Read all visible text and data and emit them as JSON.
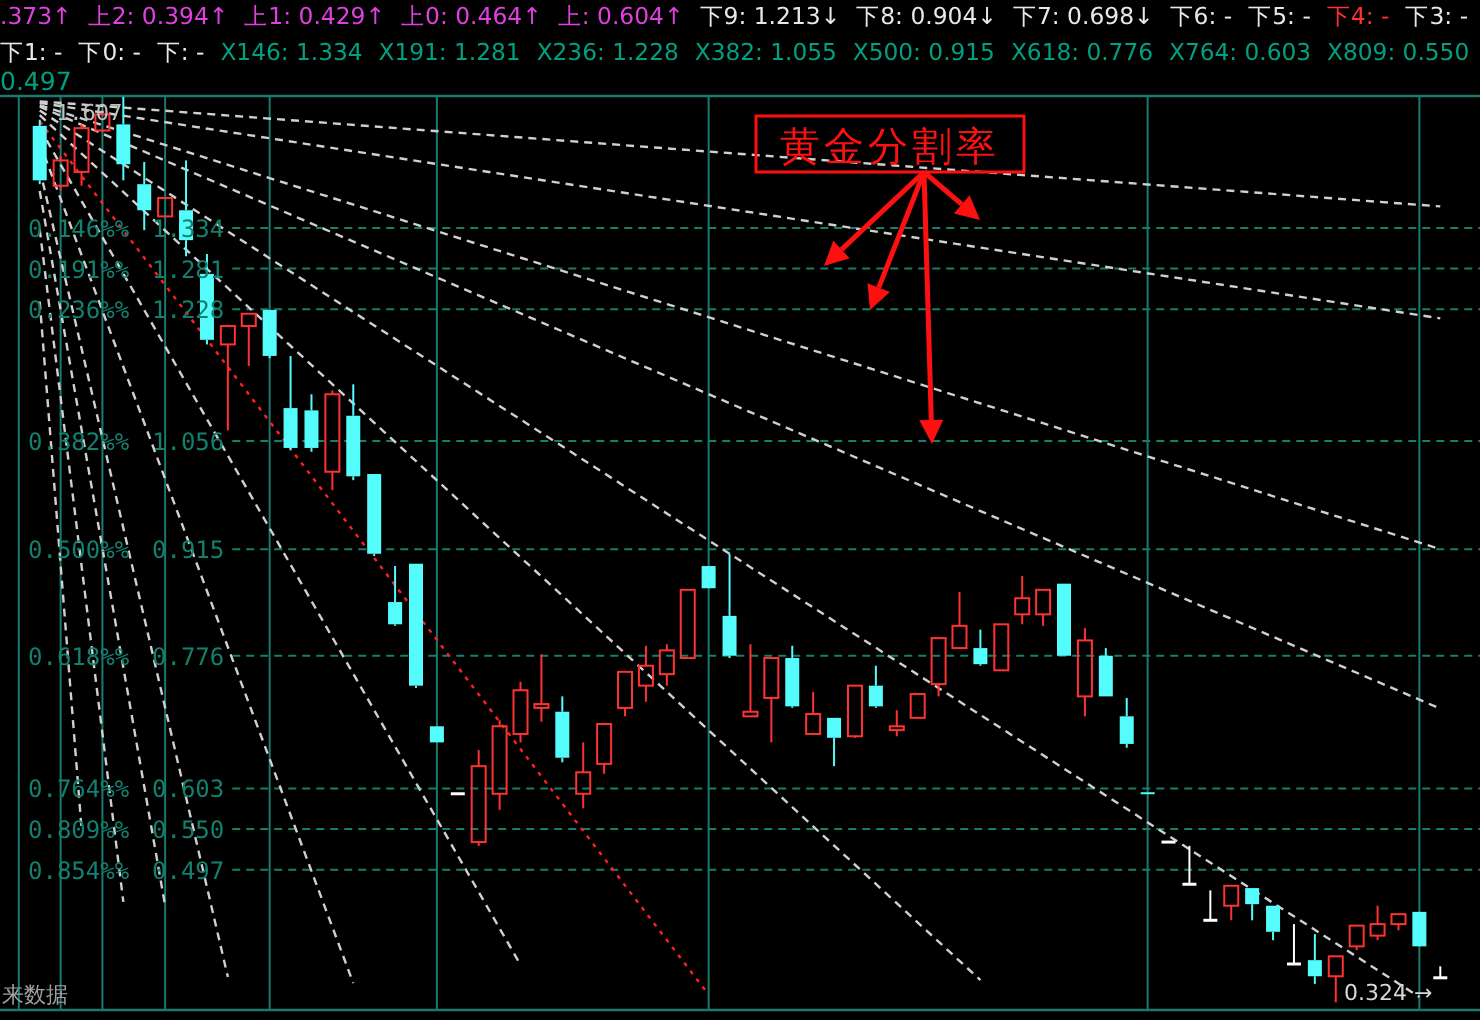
{
  "chart_data": {
    "type": "candlestick",
    "categories": [
      null,
      null,
      null,
      null,
      null,
      null,
      null,
      null,
      null,
      null,
      null,
      null,
      null,
      null,
      null,
      null,
      null,
      null,
      null,
      null,
      null,
      null,
      null,
      null,
      null,
      null,
      null,
      null,
      null,
      null,
      null,
      null,
      null,
      null,
      null,
      null,
      null,
      null,
      null,
      null,
      null,
      null,
      null,
      null,
      null,
      null,
      null,
      null,
      null,
      null,
      null,
      null,
      null,
      null,
      null,
      null,
      null,
      null,
      null,
      null,
      null,
      null,
      null,
      null,
      null,
      null,
      null,
      null
    ],
    "ohlc": [
      [
        1.467,
        1.475,
        1.391,
        1.396
      ],
      [
        1.389,
        1.428,
        1.383,
        1.422
      ],
      [
        1.407,
        1.469,
        1.389,
        1.464
      ],
      [
        1.461,
        1.488,
        1.459,
        1.482
      ],
      [
        1.469,
        1.505,
        1.396,
        1.417
      ],
      [
        1.391,
        1.42,
        1.331,
        1.357
      ],
      [
        1.349,
        1.373,
        1.349,
        1.373
      ],
      [
        1.357,
        1.422,
        1.297,
        1.318
      ],
      [
        1.274,
        1.3,
        1.182,
        1.188
      ],
      [
        1.182,
        1.206,
        1.07,
        1.206
      ],
      [
        1.206,
        1.222,
        1.154,
        1.222
      ],
      [
        1.227,
        1.227,
        1.164,
        1.167
      ],
      [
        1.099,
        1.167,
        1.044,
        1.047
      ],
      [
        1.096,
        1.117,
        1.042,
        1.047
      ],
      [
        1.016,
        1.122,
        0.992,
        1.117
      ],
      [
        1.089,
        1.13,
        1.005,
        1.01
      ],
      [
        1.013,
        1.013,
        0.906,
        0.909
      ],
      [
        0.846,
        0.893,
        0.815,
        0.817
      ],
      [
        0.896,
        0.896,
        0.734,
        0.737
      ],
      [
        0.684,
        0.684,
        0.663,
        0.663
      ],
      [
        0.596,
        0.596,
        0.596,
        0.596
      ],
      [
        0.533,
        0.653,
        0.528,
        0.632
      ],
      [
        0.596,
        0.692,
        0.575,
        0.684
      ],
      [
        0.674,
        0.742,
        0.663,
        0.731
      ],
      [
        0.708,
        0.778,
        0.69,
        0.713
      ],
      [
        0.703,
        0.723,
        0.637,
        0.643
      ],
      [
        0.596,
        0.663,
        0.577,
        0.624
      ],
      [
        0.635,
        0.687,
        0.622,
        0.687
      ],
      [
        0.708,
        0.755,
        0.697,
        0.755
      ],
      [
        0.737,
        0.789,
        0.716,
        0.763
      ],
      [
        0.752,
        0.791,
        0.737,
        0.783
      ],
      [
        0.773,
        0.862,
        0.773,
        0.862
      ],
      [
        0.893,
        0.893,
        0.864,
        0.864
      ],
      [
        0.828,
        0.909,
        0.773,
        0.776
      ],
      [
        0.697,
        0.791,
        0.697,
        0.703
      ],
      [
        0.721,
        0.773,
        0.663,
        0.773
      ],
      [
        0.773,
        0.789,
        0.708,
        0.71
      ],
      [
        0.674,
        0.729,
        0.674,
        0.7
      ],
      [
        0.695,
        0.695,
        0.632,
        0.669
      ],
      [
        0.671,
        0.737,
        0.669,
        0.737
      ],
      [
        0.737,
        0.763,
        0.708,
        0.71
      ],
      [
        0.679,
        0.705,
        0.671,
        0.684
      ],
      [
        0.695,
        0.726,
        0.695,
        0.726
      ],
      [
        0.739,
        0.799,
        0.723,
        0.799
      ],
      [
        0.786,
        0.859,
        0.786,
        0.815
      ],
      [
        0.786,
        0.81,
        0.763,
        0.765
      ],
      [
        0.757,
        0.817,
        0.757,
        0.817
      ],
      [
        0.83,
        0.88,
        0.817,
        0.851
      ],
      [
        0.83,
        0.862,
        0.815,
        0.862
      ],
      [
        0.87,
        0.87,
        0.776,
        0.776
      ],
      [
        0.723,
        0.812,
        0.697,
        0.796
      ],
      [
        0.776,
        0.786,
        0.723,
        0.723
      ],
      [
        0.697,
        0.721,
        0.656,
        0.661
      ],
      [
        0.598,
        0.598,
        0.596,
        0.596
      ],
      [
        0.533,
        0.533,
        0.533,
        0.533
      ],
      [
        0.478,
        0.528,
        0.478,
        0.478
      ],
      [
        0.431,
        0.47,
        0.431,
        0.431
      ],
      [
        0.45,
        0.476,
        0.431,
        0.476
      ],
      [
        0.473,
        0.473,
        0.431,
        0.452
      ],
      [
        0.45,
        0.45,
        0.405,
        0.416
      ],
      [
        0.374,
        0.426,
        0.374,
        0.374
      ],
      [
        0.379,
        0.413,
        0.348,
        0.358
      ],
      [
        0.358,
        0.384,
        0.324,
        0.384
      ],
      [
        0.397,
        0.424,
        0.392,
        0.424
      ],
      [
        0.411,
        0.45,
        0.405,
        0.426
      ],
      [
        0.426,
        0.439,
        0.418,
        0.439
      ],
      [
        0.442,
        0.442,
        0.397,
        0.397
      ],
      [
        0.356,
        0.371,
        0.356,
        0.356
      ]
    ],
    "series": [
      {
        "type": "line",
        "color": "#d0d0d0",
        "line_style": "dashed",
        "values": [
          1.499,
          null,
          null,
          null,
          null,
          null,
          null,
          null,
          null,
          null,
          null,
          null,
          null,
          null,
          null,
          null,
          null,
          null,
          null,
          null,
          null,
          null,
          null,
          null,
          null,
          null,
          null,
          null,
          null,
          null,
          null,
          null,
          null,
          null,
          null,
          null,
          null,
          null,
          null,
          null,
          null,
          null,
          null,
          null,
          null,
          null,
          null,
          null,
          null,
          null,
          null,
          null,
          null,
          null,
          null,
          null,
          null,
          null,
          null,
          null,
          null,
          null,
          null,
          null,
          null,
          null,
          null,
          1.362
        ]
      },
      {
        "type": "line",
        "color": "#d0d0d0",
        "line_style": "dashed",
        "values": [
          1.497,
          null,
          null,
          null,
          null,
          null,
          null,
          null,
          null,
          null,
          null,
          null,
          null,
          null,
          null,
          null,
          null,
          null,
          null,
          null,
          null,
          null,
          null,
          null,
          null,
          null,
          null,
          null,
          null,
          null,
          null,
          null,
          null,
          null,
          null,
          null,
          null,
          null,
          null,
          null,
          null,
          null,
          null,
          null,
          null,
          null,
          null,
          null,
          null,
          null,
          null,
          null,
          null,
          null,
          null,
          null,
          null,
          null,
          null,
          null,
          null,
          null,
          null,
          null,
          null,
          null,
          null,
          1.216
        ]
      },
      {
        "type": "line",
        "color": "#d0d0d0",
        "line_style": "dashed",
        "values": [
          1.494,
          null,
          null,
          null,
          null,
          null,
          null,
          null,
          null,
          null,
          null,
          null,
          null,
          null,
          null,
          null,
          null,
          null,
          null,
          null,
          null,
          null,
          null,
          null,
          null,
          null,
          null,
          null,
          null,
          null,
          null,
          null,
          null,
          null,
          null,
          null,
          null,
          null,
          null,
          null,
          null,
          null,
          null,
          null,
          null,
          null,
          null,
          null,
          null,
          null,
          null,
          null,
          null,
          null,
          null,
          null,
          null,
          null,
          null,
          null,
          null,
          null,
          null,
          null,
          null,
          null,
          null,
          0.915
        ]
      },
      {
        "type": "line",
        "color": "#d0d0d0",
        "line_style": "dashed",
        "values": [
          1.492,
          null,
          null,
          null,
          null,
          null,
          null,
          null,
          null,
          null,
          null,
          null,
          null,
          null,
          null,
          null,
          null,
          null,
          null,
          null,
          null,
          null,
          null,
          null,
          null,
          null,
          null,
          null,
          null,
          null,
          null,
          null,
          null,
          null,
          null,
          null,
          null,
          null,
          null,
          null,
          null,
          null,
          null,
          null,
          null,
          null,
          null,
          null,
          null,
          null,
          null,
          null,
          null,
          null,
          null,
          null,
          null,
          null,
          null,
          null,
          null,
          null,
          null,
          null,
          null,
          null,
          null,
          0.707
        ]
      },
      {
        "type": "line",
        "color": "#d0d0d0",
        "line_style": "dashed",
        "values": [
          1.487,
          null,
          null,
          null,
          null,
          null,
          null,
          null,
          null,
          null,
          null,
          null,
          null,
          null,
          null,
          null,
          null,
          null,
          null,
          null,
          null,
          null,
          null,
          null,
          null,
          null,
          null,
          null,
          null,
          null,
          null,
          null,
          null,
          null,
          null,
          null,
          null,
          null,
          null,
          null,
          null,
          null,
          null,
          null,
          null,
          null,
          null,
          null,
          null,
          null,
          null,
          null,
          null,
          null,
          null,
          null,
          null,
          null,
          null,
          null,
          null,
          null,
          null,
          null,
          null,
          null,
          0.331,
          null
        ]
      },
      {
        "type": "line",
        "color": "#d0d0d0",
        "line_style": "dashed",
        "values": [
          1.481,
          null,
          null,
          null,
          null,
          null,
          null,
          null,
          null,
          null,
          null,
          null,
          null,
          null,
          null,
          null,
          null,
          null,
          null,
          null,
          null,
          null,
          null,
          null,
          null,
          null,
          null,
          null,
          null,
          null,
          null,
          null,
          null,
          null,
          null,
          null,
          null,
          null,
          null,
          null,
          null,
          null,
          null,
          null,
          null,
          0.353,
          null,
          null,
          null,
          null,
          null,
          null,
          null,
          null,
          null,
          null,
          null,
          null,
          null,
          null,
          null,
          null,
          null,
          null,
          null,
          null,
          null,
          null
        ]
      },
      {
        "type": "line",
        "color": "#ff2020",
        "line_style": "dotted",
        "values": [
          1.473,
          null,
          null,
          null,
          null,
          null,
          null,
          null,
          null,
          null,
          null,
          null,
          null,
          null,
          null,
          null,
          null,
          null,
          null,
          null,
          null,
          null,
          null,
          null,
          null,
          null,
          null,
          null,
          null,
          null,
          null,
          null,
          0.334,
          null,
          null,
          null,
          null,
          null,
          null,
          null,
          null,
          null,
          null,
          null,
          null,
          null,
          null,
          null,
          null,
          null,
          null,
          null,
          null,
          null,
          null,
          null,
          null,
          null,
          null,
          null,
          null,
          null,
          null,
          null,
          null,
          null,
          null,
          null
        ]
      },
      {
        "type": "line",
        "color": "#d0d0d0",
        "line_style": "dashed",
        "values": [
          1.464,
          null,
          null,
          null,
          null,
          null,
          null,
          null,
          null,
          null,
          null,
          null,
          null,
          null,
          null,
          null,
          null,
          null,
          null,
          null,
          null,
          null,
          null,
          0.373,
          null,
          null,
          null,
          null,
          null,
          null,
          null,
          null,
          null,
          null,
          null,
          null,
          null,
          null,
          null,
          null,
          null,
          null,
          null,
          null,
          null,
          null,
          null,
          null,
          null,
          null,
          null,
          null,
          null,
          null,
          null,
          null,
          null,
          null,
          null,
          null,
          null,
          null,
          null,
          null,
          null,
          null,
          null,
          null
        ]
      },
      {
        "type": "line",
        "color": "#d0d0d0",
        "line_style": "dashed",
        "values": [
          1.445,
          null,
          null,
          null,
          null,
          null,
          null,
          null,
          null,
          null,
          null,
          null,
          null,
          null,
          null,
          0.349,
          null,
          null,
          null,
          null,
          null,
          null,
          null,
          null,
          null,
          null,
          null,
          null,
          null,
          null,
          null,
          null,
          null,
          null,
          null,
          null,
          null,
          null,
          null,
          null,
          null,
          null,
          null,
          null,
          null,
          null,
          null,
          null,
          null,
          null,
          null,
          null,
          null,
          null,
          null,
          null,
          null,
          null,
          null,
          null,
          null,
          null,
          null,
          null,
          null,
          null,
          null,
          null
        ]
      },
      {
        "type": "line",
        "color": "#d0d0d0",
        "line_style": "dashed",
        "values": [
          1.411,
          null,
          null,
          null,
          null,
          null,
          null,
          null,
          null,
          0.357,
          null,
          null,
          null,
          null,
          null,
          null,
          null,
          null,
          null,
          null,
          null,
          null,
          null,
          null,
          null,
          null,
          null,
          null,
          null,
          null,
          null,
          null,
          null,
          null,
          null,
          null,
          null,
          null,
          null,
          null,
          null,
          null,
          null,
          null,
          null,
          null,
          null,
          null,
          null,
          null,
          null,
          null,
          null,
          null,
          null,
          null,
          null,
          null,
          null,
          null,
          null,
          null,
          null,
          null,
          null,
          null,
          null,
          null
        ]
      },
      {
        "type": "line",
        "color": "#d0d0d0",
        "line_style": "dashed",
        "values": [
          1.382,
          null,
          null,
          null,
          null,
          null,
          0.45,
          null,
          null,
          null,
          null,
          null,
          null,
          null,
          null,
          null,
          null,
          null,
          null,
          null,
          null,
          null,
          null,
          null,
          null,
          null,
          null,
          null,
          null,
          null,
          null,
          null,
          null,
          null,
          null,
          null,
          null,
          null,
          null,
          null,
          null,
          null,
          null,
          null,
          null,
          null,
          null,
          null,
          null,
          null,
          null,
          null,
          null,
          null,
          null,
          null,
          null,
          null,
          null,
          null,
          null,
          null,
          null,
          null,
          null,
          null,
          null,
          null
        ]
      },
      {
        "type": "line",
        "color": "#d0d0d0",
        "line_style": "dashed",
        "values": [
          1.332,
          null,
          null,
          null,
          0.455,
          null,
          null,
          null,
          null,
          null,
          null,
          null,
          null,
          null,
          null,
          null,
          null,
          null,
          null,
          null,
          null,
          null,
          null,
          null,
          null,
          null,
          null,
          null,
          null,
          null,
          null,
          null,
          null,
          null,
          null,
          null,
          null,
          null,
          null,
          null,
          null,
          null,
          null,
          null,
          null,
          null,
          null,
          null,
          null,
          null,
          null,
          null,
          null,
          null,
          null,
          null,
          null,
          null,
          null,
          null,
          null,
          null,
          null,
          null,
          null,
          null,
          null,
          null
        ]
      },
      {
        "type": "line",
        "color": "#d0d0d0",
        "line_style": "dashed",
        "values": [
          1.238,
          null,
          0.551,
          null,
          null,
          null,
          null,
          null,
          null,
          null,
          null,
          null,
          null,
          null,
          null,
          null,
          null,
          null,
          null,
          null,
          null,
          null,
          null,
          null,
          null,
          null,
          null,
          null,
          null,
          null,
          null,
          null,
          null,
          null,
          null,
          null,
          null,
          null,
          null,
          null,
          null,
          null,
          null,
          null,
          null,
          null,
          null,
          null,
          null,
          null,
          null,
          null,
          null,
          null,
          null,
          null,
          null,
          null,
          null,
          null,
          null,
          null,
          null,
          null,
          null,
          null,
          null,
          null
        ]
      }
    ],
    "ylim": [
      0.314,
      1.506
    ],
    "tick_labels": "y",
    "grid": true,
    "yticks": [
      1.334,
      1.281,
      1.228,
      1.056,
      0.915,
      0.776,
      0.603,
      {
        "value": 0.55,
        "label": "0.550"
      },
      0.497
    ],
    "annotations": [
      ".373↑",
      "上2: 0.394↑",
      "上1: 0.429↑",
      "上0: 0.464↑",
      "上: 0.604↑",
      "下9: 1.213↓",
      "下8: 0.904↓",
      "下7: 0.698↓",
      "下6: -",
      "下5: -",
      "下4: -",
      "下3: -",
      "下1: -",
      "下0: -",
      "下: -",
      "X146: 1.334",
      "X191: 1.281",
      "X236: 1.228",
      "X382: 1.055",
      "X500: 0.915",
      "X618: 0.776",
      "X764: 0.603",
      "X809: 0.550",
      "0.497",
      "黄金分割率",
      "1.607",
      "来数据",
      "0.324 →",
      "0.146%%",
      "0.191%%",
      "0.236%%",
      "0.382%%",
      "0.500%%",
      "0.618%%",
      "0.764%%",
      "0.809%%",
      "0.854%%"
    ]
  }
}
